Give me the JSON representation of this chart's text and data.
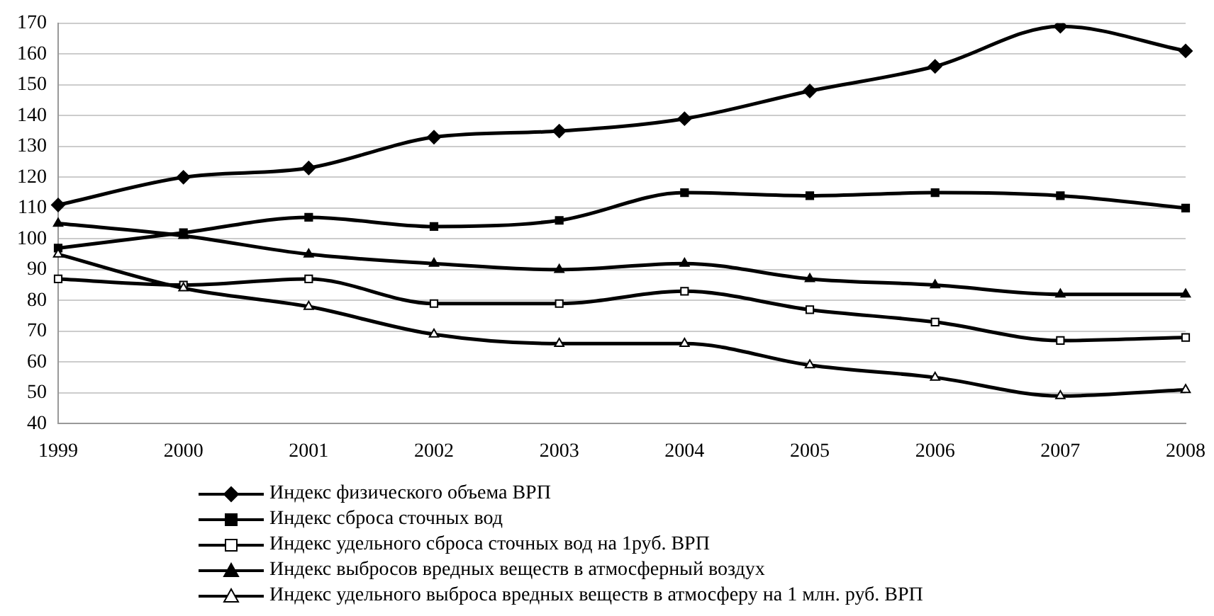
{
  "chart_data": {
    "type": "line",
    "categories": [
      "1999",
      "2000",
      "2001",
      "2002",
      "2003",
      "2004",
      "2005",
      "2006",
      "2007",
      "2008"
    ],
    "ylim": [
      40,
      170
    ],
    "yticks": [
      40,
      50,
      60,
      70,
      80,
      90,
      100,
      110,
      120,
      130,
      140,
      150,
      160,
      170
    ],
    "grid": "y",
    "legend": "bottom",
    "series": [
      {
        "name": "Индекс физического объема ВРП",
        "color": "#000000",
        "marker": "diamond",
        "values": [
          111,
          120,
          123,
          133,
          135,
          139,
          148,
          156,
          169,
          161
        ]
      },
      {
        "name": "Индекс сброса сточных вод",
        "color": "#000000",
        "marker": "square",
        "values": [
          97,
          102,
          107,
          104,
          106,
          115,
          114,
          115,
          114,
          110
        ]
      },
      {
        "name": "Индекс удельного сброса сточных вод на 1руб. ВРП",
        "color": "#000000",
        "marker": "square",
        "values": [
          87,
          85,
          87,
          79,
          79,
          83,
          77,
          73,
          67,
          68
        ]
      },
      {
        "name": "Индекс выбросов вредных веществ в атмосферный воздух",
        "color": "#000000",
        "marker": "triangle",
        "values": [
          105,
          101,
          95,
          92,
          90,
          92,
          87,
          85,
          82,
          82
        ]
      },
      {
        "name": "Индекс удельного выброса вредных веществ в атмосферу на 1 млн. руб. ВРП",
        "color": "#000000",
        "marker": "triangle",
        "values": [
          95,
          84,
          78,
          69,
          66,
          66,
          59,
          55,
          49,
          51
        ]
      }
    ]
  }
}
